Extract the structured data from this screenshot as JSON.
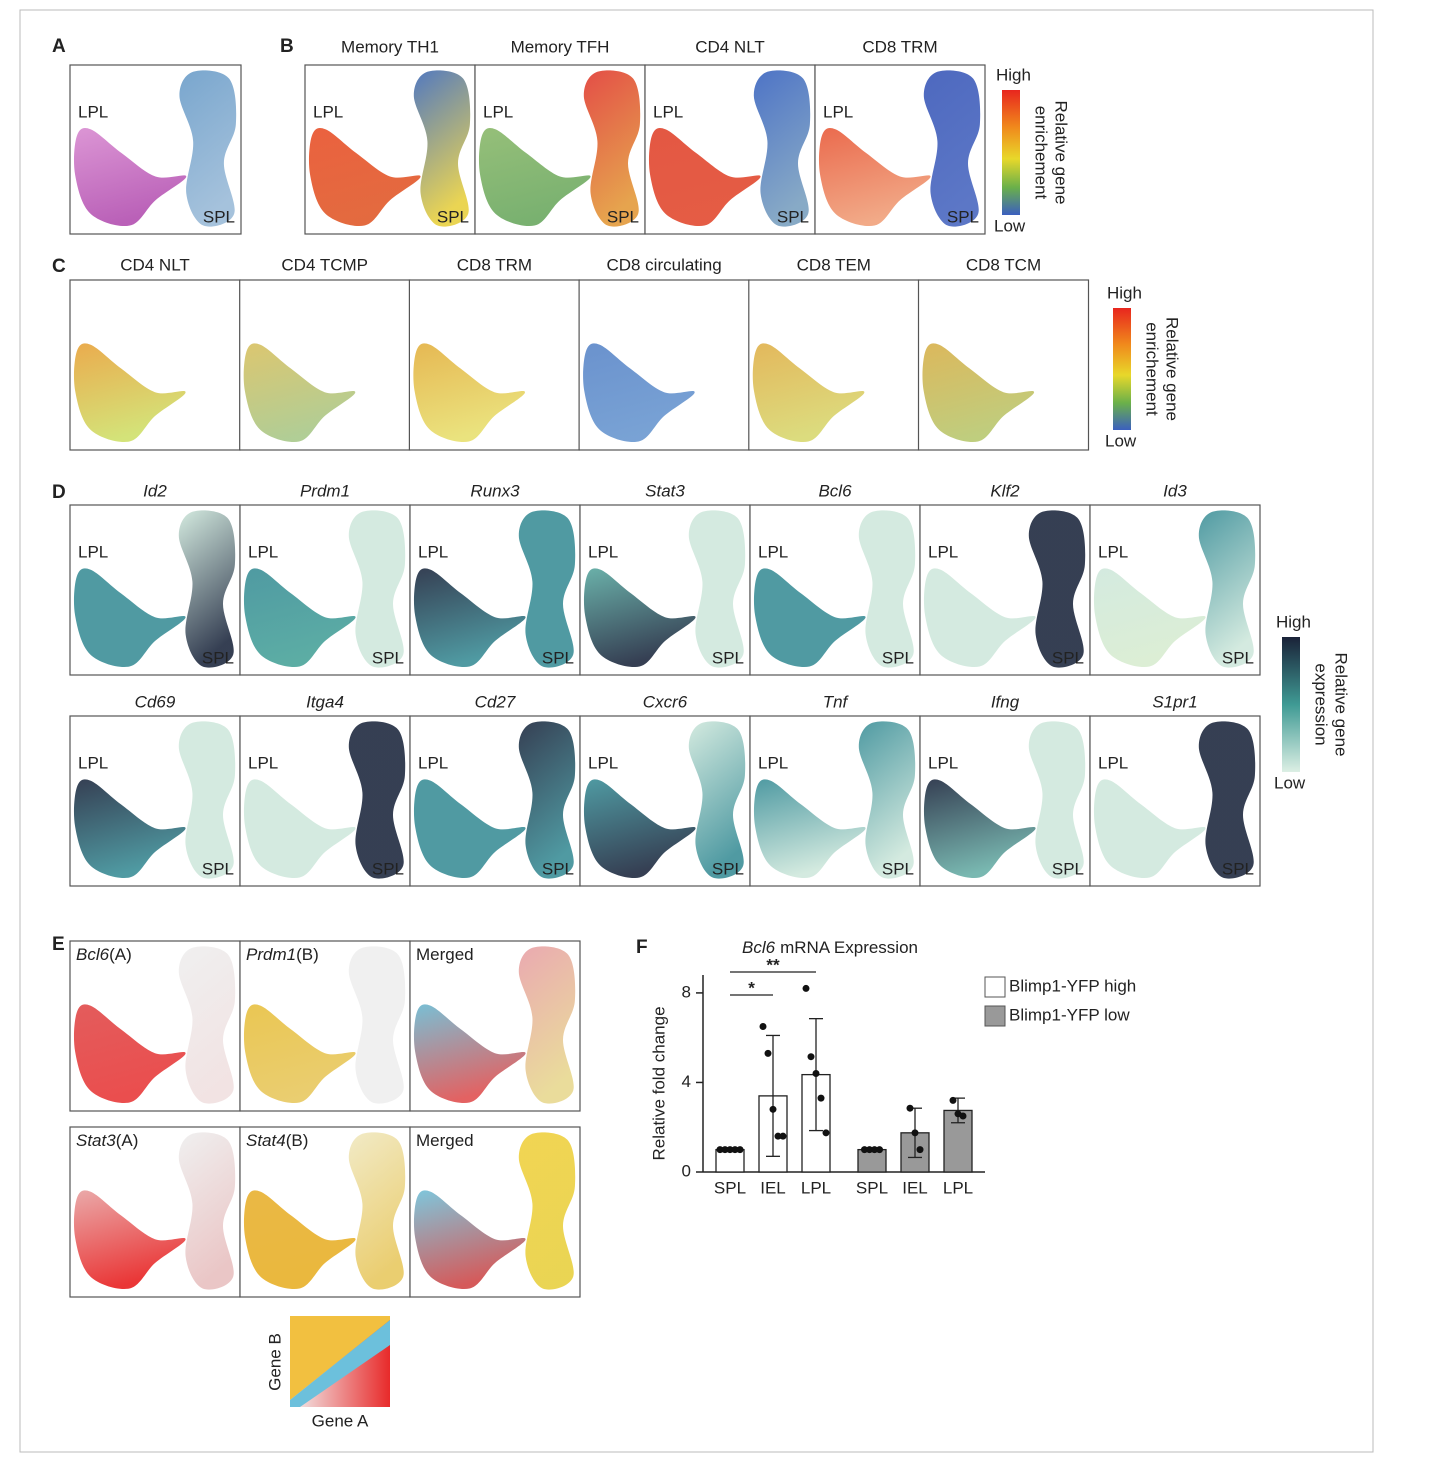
{
  "panel_letters": [
    "A",
    "B",
    "C",
    "D",
    "E",
    "F"
  ],
  "panel_a": {
    "labels": [
      "LPL",
      "SPL"
    ]
  },
  "panel_b": {
    "plots": [
      {
        "title": "Memory TH1",
        "labels": [
          "LPL",
          "SPL"
        ]
      },
      {
        "title": "Memory TFH",
        "labels": [
          "LPL",
          "SPL"
        ]
      },
      {
        "title": "CD4 NLT",
        "labels": [
          "LPL",
          "SPL"
        ]
      },
      {
        "title": "CD8 TRM",
        "labels": [
          "LPL",
          "SPL"
        ]
      }
    ],
    "colorbar": {
      "high": "High",
      "low": "Low",
      "label": [
        "Relative gene",
        "enrichement"
      ]
    }
  },
  "panel_c": {
    "plots": [
      {
        "title": "CD4 NLT"
      },
      {
        "title": "CD4 TCMP"
      },
      {
        "title": "CD8 TRM"
      },
      {
        "title": "CD8 circulating"
      },
      {
        "title": "CD8 TEM"
      },
      {
        "title": "CD8 TCM"
      }
    ],
    "colorbar": {
      "high": "High",
      "low": "Low",
      "label": [
        "Relative gene",
        "enrichement"
      ]
    }
  },
  "panel_d": {
    "plots": [
      {
        "title": "Id2",
        "labels": [
          "LPL",
          "SPL"
        ]
      },
      {
        "title": "Prdm1",
        "labels": [
          "LPL",
          "SPL"
        ]
      },
      {
        "title": "Runx3",
        "labels": [
          "LPL",
          "SPL"
        ]
      },
      {
        "title": "Stat3",
        "labels": [
          "LPL",
          "SPL"
        ]
      },
      {
        "title": "Bcl6",
        "labels": [
          "LPL",
          "SPL"
        ]
      },
      {
        "title": "Klf2",
        "labels": [
          "LPL",
          "SPL"
        ]
      },
      {
        "title": "Id3",
        "labels": [
          "LPL",
          "SPL"
        ]
      },
      {
        "title": "Cd69",
        "labels": [
          "LPL",
          "SPL"
        ]
      },
      {
        "title": "Itga4",
        "labels": [
          "LPL",
          "SPL"
        ]
      },
      {
        "title": "Cd27",
        "labels": [
          "LPL",
          "SPL"
        ]
      },
      {
        "title": "Cxcr6",
        "labels": [
          "LPL",
          "SPL"
        ]
      },
      {
        "title": "Tnf",
        "labels": [
          "LPL",
          "SPL"
        ]
      },
      {
        "title": "Ifng",
        "labels": [
          "LPL",
          "SPL"
        ]
      },
      {
        "title": "S1pr1",
        "labels": [
          "LPL",
          "SPL"
        ]
      }
    ],
    "colorbar": {
      "high": "High",
      "low": "Low",
      "label": [
        "Relative gene",
        "expression"
      ]
    }
  },
  "panel_e": {
    "plots": [
      {
        "gene": "Bcl6",
        "suffix": "(A)"
      },
      {
        "gene": "Prdm1",
        "suffix": "(B)"
      },
      {
        "gene": "",
        "suffix": "Merged"
      },
      {
        "gene": "Stat3",
        "suffix": "(A)"
      },
      {
        "gene": "Stat4",
        "suffix": "(B)"
      },
      {
        "gene": "",
        "suffix": "Merged"
      }
    ],
    "legend": {
      "y_label": "Gene B",
      "x_label": "Gene A"
    }
  },
  "chart_data": {
    "type": "bar",
    "title_gene": "Bcl6",
    "title": "mRNA Expression",
    "ylabel": "Relative fold change",
    "categories": [
      "SPL",
      "IEL",
      "LPL",
      "SPL",
      "IEL",
      "LPL"
    ],
    "series": [
      {
        "name": "Blimp1-YFP high",
        "color": "#ffffff",
        "values": [
          1,
          3.4,
          4.35,
          null,
          null,
          null
        ],
        "errors": [
          0,
          2.7,
          2.5,
          null,
          null,
          null
        ],
        "points": [
          [
            1,
            1,
            1,
            1,
            1
          ],
          [
            6.5,
            5.3,
            2.8,
            1.6,
            1.6
          ],
          [
            8.2,
            5.15,
            4.4,
            3.3,
            1.75
          ],
          null,
          null,
          null
        ]
      },
      {
        "name": "Blimp1-YFP low",
        "color": "#999999",
        "values": [
          null,
          null,
          null,
          1,
          1.75,
          2.75
        ],
        "errors": [
          null,
          null,
          null,
          0,
          1.1,
          0.55
        ],
        "points": [
          null,
          null,
          null,
          [
            1,
            1,
            1,
            1
          ],
          [
            2.85,
            1.75,
            1.0
          ],
          [
            3.2,
            2.6,
            2.5
          ]
        ]
      }
    ],
    "annotations": [
      "*",
      "**"
    ],
    "ylim": [
      0,
      8.8
    ],
    "yticks": [
      0,
      4,
      8
    ]
  }
}
